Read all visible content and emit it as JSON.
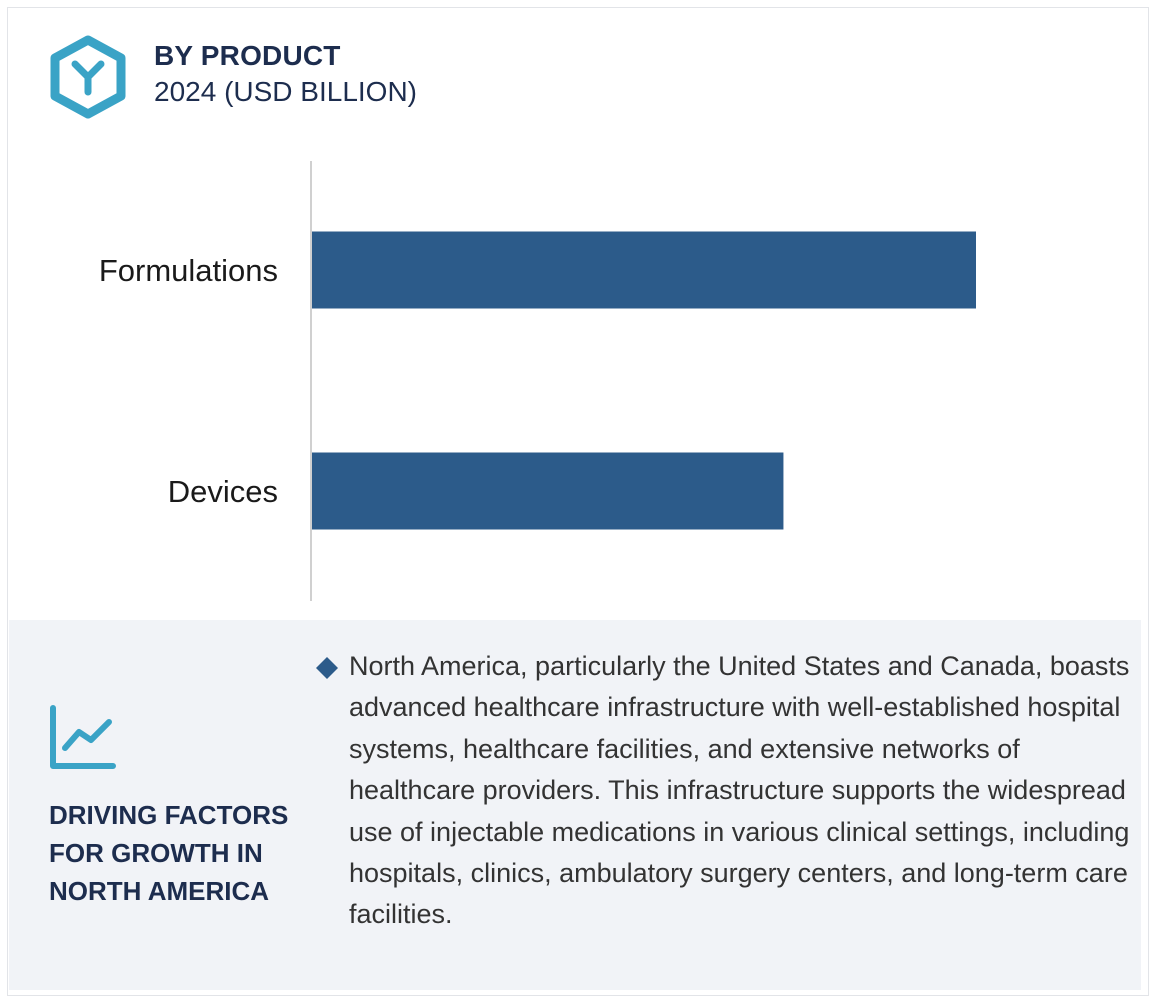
{
  "header": {
    "title": "BY PRODUCT",
    "subtitle": "2024 (USD BILLION)",
    "icon": "hexagon-y-icon",
    "icon_color": "#3aa3c6"
  },
  "chart_data": {
    "type": "bar",
    "orientation": "horizontal",
    "categories": [
      "Formulations",
      "Devices"
    ],
    "values": [
      1.0,
      0.71
    ],
    "value_scale": "relative (no axis values printed)",
    "title": "",
    "xlabel": "",
    "ylabel": "",
    "xlim": [
      0,
      1.0
    ],
    "grid": false,
    "legend": "none",
    "bar_color": "#2c5b8a"
  },
  "factors": {
    "icon": "line-chart-icon",
    "title": "DRIVING FACTORS FOR GROWTH IN NORTH AMERICA",
    "bullet_icon": "diamond-bullet-icon",
    "bullets": [
      "North America, particularly the United States and Canada, boasts advanced healthcare infrastructure with well-established hospital systems, healthcare facilities, and extensive networks of healthcare providers. This infrastructure supports the widespread use of injectable medications in various clinical settings, including hospitals, clinics, ambulatory surgery centers, and long-term care facilities."
    ],
    "accent_color": "#2c5b8a"
  }
}
